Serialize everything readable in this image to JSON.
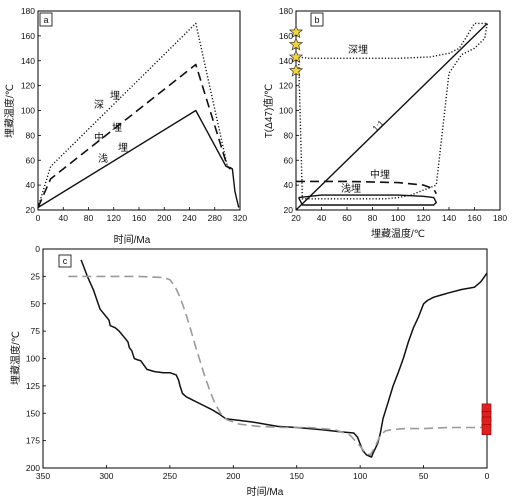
{
  "panels": {
    "a": {
      "label": "a",
      "xlabel": "时间/Ma",
      "ylabel": "埋藏温度/℃",
      "xlim": [
        0,
        320
      ],
      "ylim": [
        20,
        180
      ],
      "xticks": [
        0,
        40,
        80,
        120,
        160,
        200,
        240,
        280,
        320
      ],
      "yticks": [
        20,
        40,
        60,
        80,
        100,
        120,
        140,
        160,
        180
      ],
      "annotations": [
        "深",
        "埋",
        "中",
        "埋",
        "浅",
        "埋"
      ]
    },
    "b": {
      "label": "b",
      "xlabel": "埋藏温度/℃",
      "ylabel": "T(Δ47)值/℃",
      "xlim": [
        20,
        180
      ],
      "ylim": [
        20,
        180
      ],
      "xticks": [
        20,
        40,
        60,
        80,
        100,
        120,
        140,
        160,
        180
      ],
      "yticks": [
        20,
        40,
        60,
        80,
        100,
        120,
        140,
        160,
        180
      ],
      "annotations": [
        "深埋",
        "中埋",
        "浅埋",
        "1:1"
      ]
    },
    "c": {
      "label": "c",
      "xlabel": "时间/Ma",
      "ylabel": "埋藏温度/℃",
      "xlim": [
        350,
        0
      ],
      "ylim": [
        0,
        200
      ],
      "xticks": [
        350,
        300,
        250,
        200,
        150,
        100,
        50,
        0
      ],
      "yticks": [
        0,
        25,
        50,
        75,
        100,
        125,
        150,
        175,
        200
      ]
    }
  },
  "chart_data": [
    {
      "panel": "a",
      "type": "line",
      "xlim": [
        0,
        320
      ],
      "ylim": [
        20,
        180
      ],
      "series": [
        {
          "style": "dotted",
          "x": [
            0,
            20,
            250,
            300,
            305
          ],
          "y": [
            22,
            55,
            170,
            55,
            53
          ]
        },
        {
          "style": "dashed",
          "x": [
            0,
            20,
            250,
            300,
            305
          ],
          "y": [
            22,
            45,
            137,
            55,
            53
          ]
        },
        {
          "style": "solid",
          "x": [
            0,
            250,
            298,
            305,
            308,
            312,
            318
          ],
          "y": [
            22,
            100,
            55,
            54,
            53,
            35,
            22
          ]
        }
      ]
    },
    {
      "panel": "b",
      "type": "line",
      "xlim": [
        20,
        180
      ],
      "ylim": [
        20,
        180
      ],
      "series": [
        {
          "style": "solid-1:1",
          "x": [
            20,
            170
          ],
          "y": [
            20,
            170
          ]
        },
        {
          "style": "dotted",
          "x": [
            22,
            30,
            60,
            100,
            125,
            140,
            148,
            153,
            157,
            160,
            163,
            167,
            170,
            168,
            160,
            150,
            140,
            130,
            120,
            110,
            100,
            90,
            80,
            70,
            60,
            50,
            40,
            30,
            25,
            22
          ],
          "y": [
            143,
            142,
            142,
            142,
            143,
            146,
            150,
            158,
            165,
            170,
            170,
            170,
            170,
            158,
            150,
            145,
            130,
            40,
            36,
            32,
            30,
            29,
            29,
            29,
            29,
            29,
            29,
            29,
            29,
            143
          ]
        },
        {
          "style": "dashed",
          "x": [
            20,
            60,
            100,
            120,
            128,
            130
          ],
          "y": [
            43,
            43,
            42,
            40,
            37,
            33
          ]
        },
        {
          "style": "solid",
          "x": [
            22,
            40,
            70,
            100,
            120,
            128,
            130,
            128,
            120,
            100,
            70,
            40,
            25,
            22
          ],
          "y": [
            30,
            32,
            32,
            32,
            31,
            30,
            26,
            24,
            24,
            24,
            24,
            24,
            24,
            30
          ]
        }
      ],
      "stars_x": [
        20,
        20,
        20,
        20
      ],
      "stars_y": [
        163,
        153,
        143,
        132
      ]
    },
    {
      "panel": "c",
      "type": "line",
      "xlim": [
        350,
        0
      ],
      "ylim": [
        0,
        200
      ],
      "series": [
        {
          "style": "solid",
          "x": [
            320,
            315,
            310,
            308,
            305,
            300,
            298,
            297,
            293,
            290,
            285,
            283,
            282,
            280,
            278,
            276,
            273,
            268,
            262,
            255,
            250,
            245,
            243,
            242,
            240,
            237,
            232,
            225,
            218,
            212,
            206,
            185,
            165,
            150,
            130,
            115,
            105,
            102,
            100,
            98,
            95,
            93,
            91,
            90,
            88,
            86,
            84,
            82,
            78,
            74,
            70,
            66,
            62,
            58,
            54,
            50,
            47,
            42,
            36,
            30,
            20,
            10,
            5,
            0
          ],
          "y": [
            10,
            25,
            38,
            45,
            55,
            62,
            65,
            70,
            72,
            75,
            82,
            85,
            90,
            93,
            100,
            101,
            102,
            110,
            112,
            113,
            113,
            115,
            120,
            125,
            132,
            135,
            138,
            142,
            146,
            150,
            155,
            158,
            162,
            163,
            165,
            167,
            168,
            172,
            178,
            184,
            188,
            189,
            190,
            187,
            182,
            177,
            168,
            155,
            140,
            125,
            113,
            100,
            85,
            72,
            62,
            50,
            47,
            44,
            42,
            40,
            37,
            35,
            30,
            22
          ]
        },
        {
          "style": "dashed",
          "x": [
            330,
            300,
            275,
            255,
            250,
            246,
            242,
            238,
            234,
            230,
            226,
            222,
            218,
            214,
            210,
            205,
            195,
            180,
            160,
            140,
            120,
            108,
            100,
            96,
            92,
            88,
            84,
            80,
            75,
            65,
            50,
            30,
            10,
            0
          ],
          "y": [
            25,
            25,
            25,
            26,
            28,
            34,
            44,
            57,
            72,
            88,
            103,
            118,
            131,
            142,
            150,
            156,
            160,
            162,
            163,
            163,
            165,
            170,
            180,
            186,
            188,
            180,
            170,
            166,
            165,
            164,
            164,
            163,
            163,
            163
          ]
        }
      ],
      "markers_x": [
        0,
        0,
        0,
        0
      ],
      "markers_y": [
        146,
        153,
        158,
        165
      ]
    }
  ]
}
